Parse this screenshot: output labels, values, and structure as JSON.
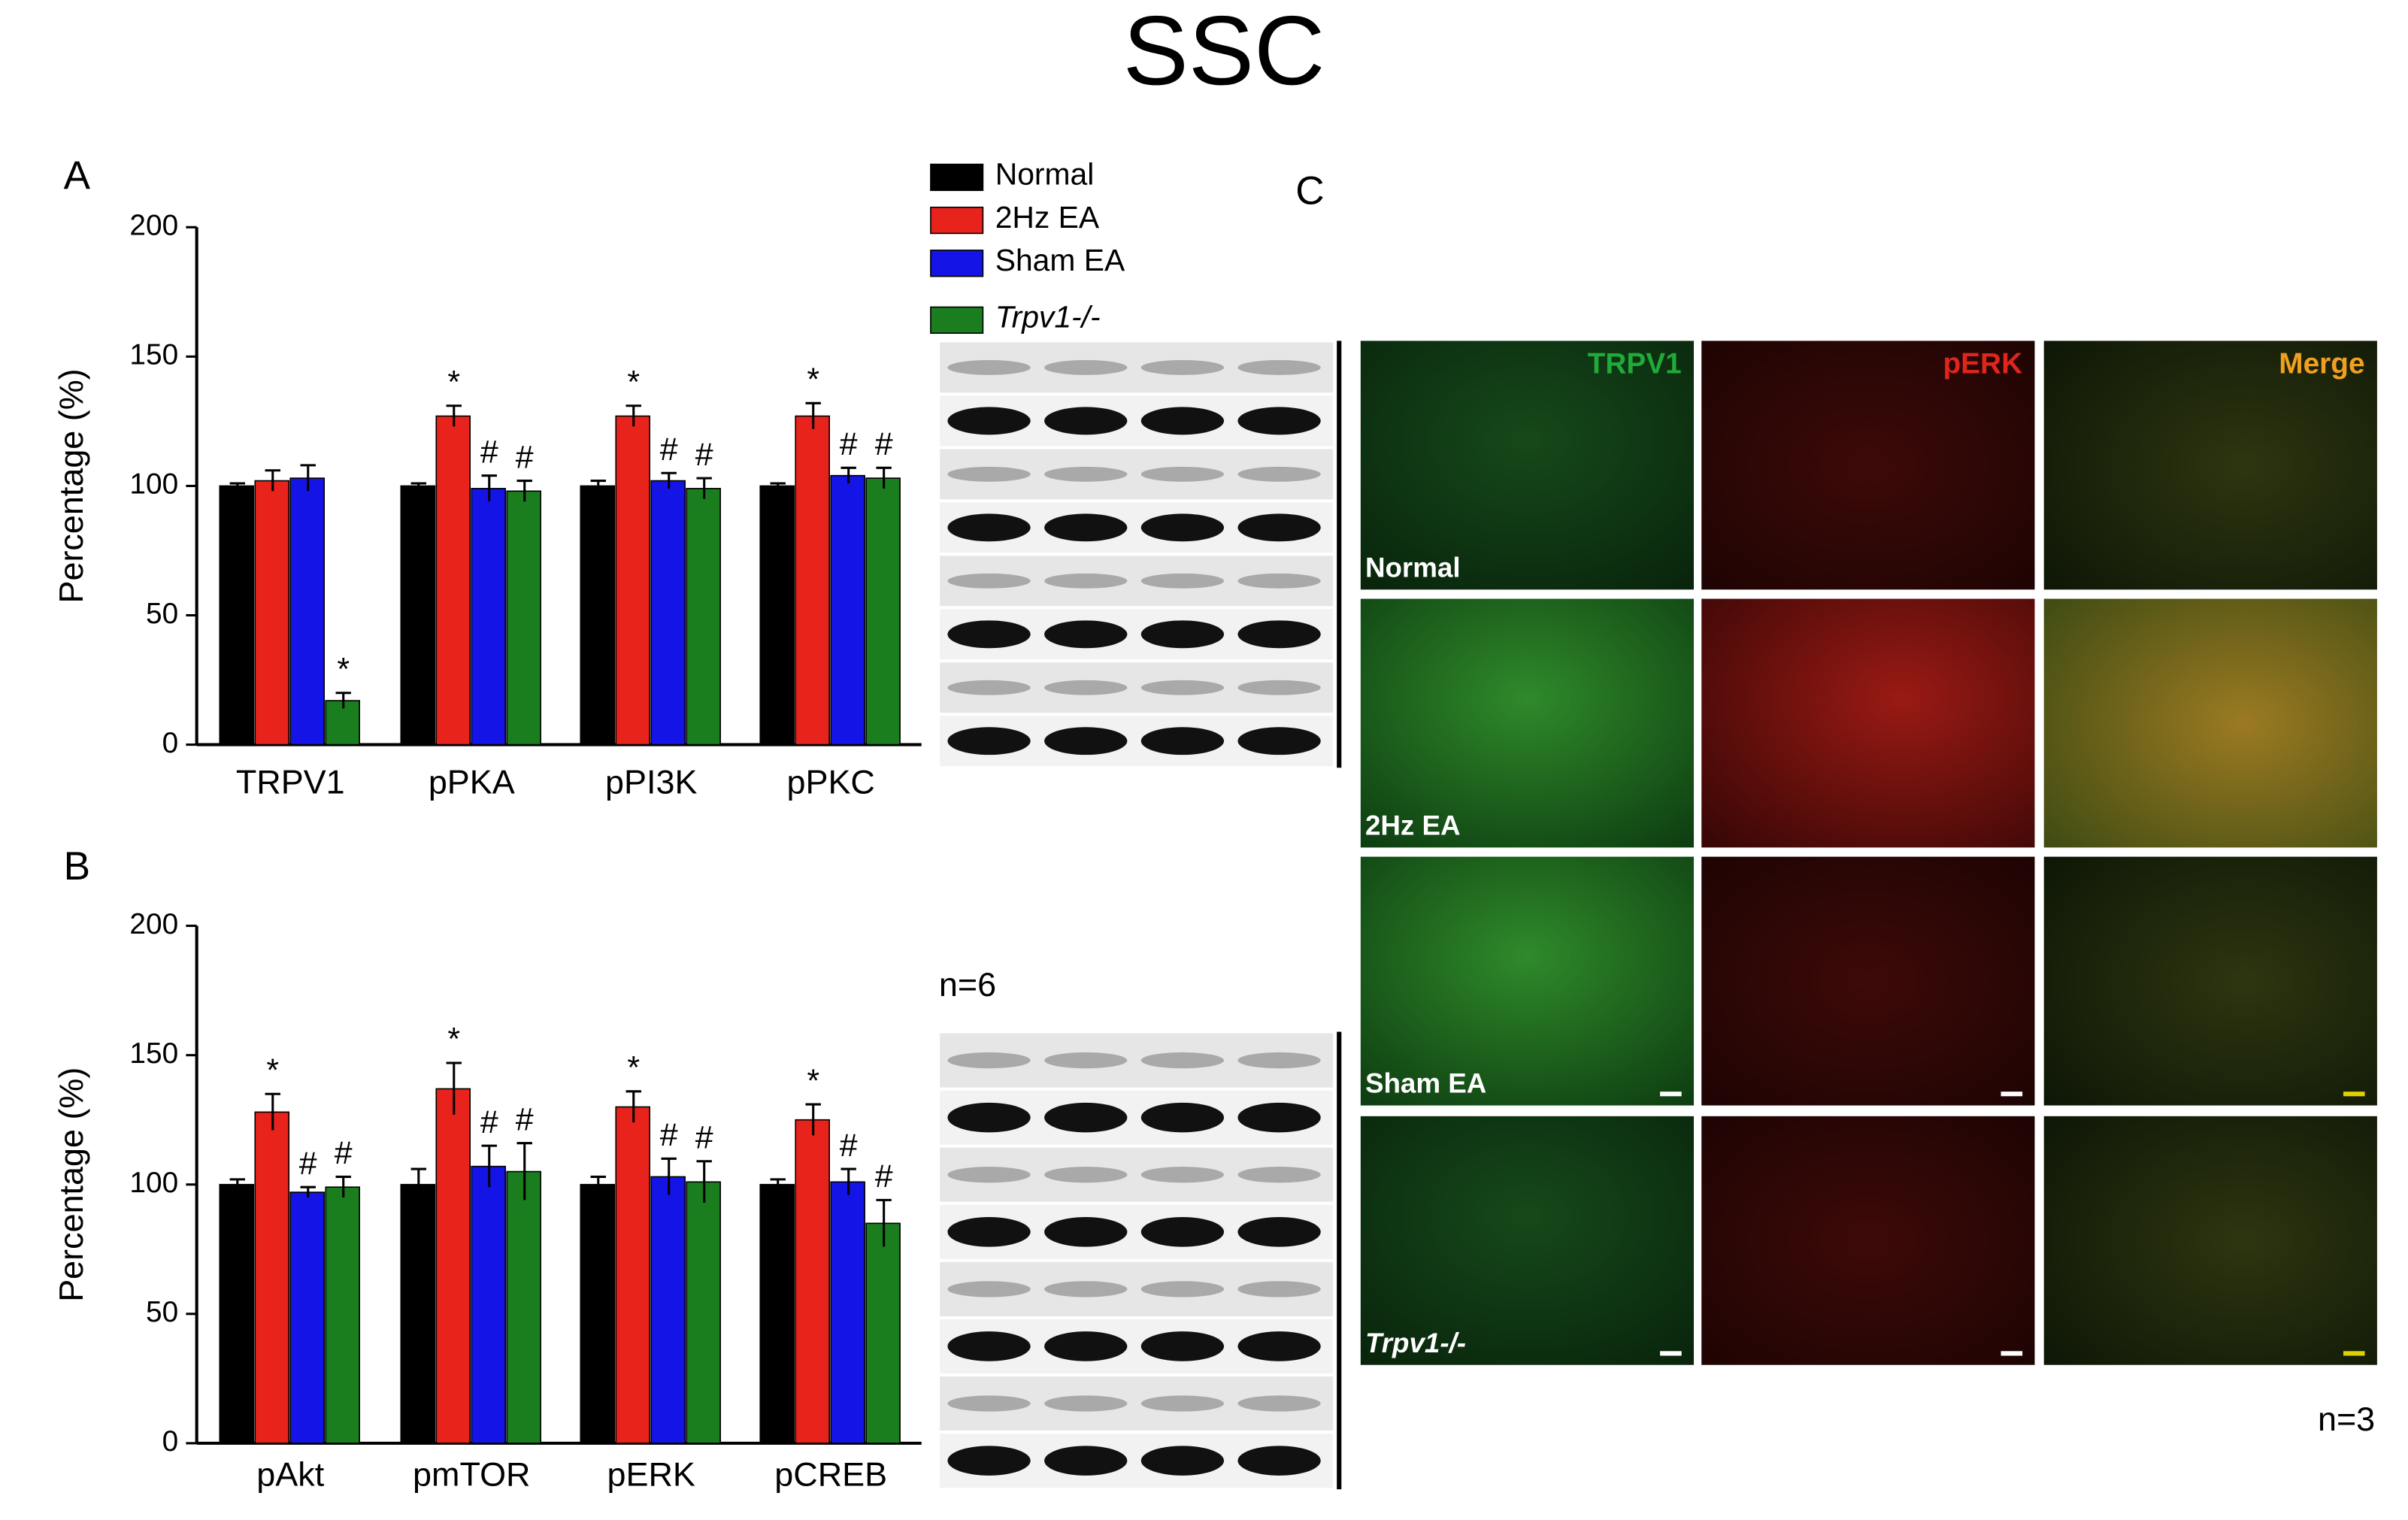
{
  "title": "SSC",
  "panel_labels": [
    "A",
    "B",
    "C"
  ],
  "blot_note": "n=6",
  "image_note": "n=3",
  "micrographs": {
    "columns": [
      "TRPV1",
      "pERK",
      "Merge"
    ],
    "rows": [
      "Normal",
      "2Hz EA",
      "Sham EA",
      "Trpv1-/-"
    ]
  },
  "chart_data": [
    {
      "type": "bar",
      "ylabel": "Percentage (%)",
      "categories": [
        "TRPV1",
        "pPKA",
        "pPI3K",
        "pPKC"
      ],
      "ylim": [
        0,
        200
      ],
      "yticks": [
        0,
        50,
        100,
        150,
        200
      ],
      "legend": "top-right",
      "series": [
        {
          "name": "Normal",
          "color": "#000000",
          "values": [
            100,
            100,
            100,
            100
          ],
          "errors": [
            1,
            1,
            2,
            1
          ]
        },
        {
          "name": "2Hz EA",
          "color": "#e8231c",
          "values": [
            102,
            127,
            127,
            127
          ],
          "errors": [
            4,
            4,
            4,
            5
          ],
          "markers": [
            null,
            "*",
            "*",
            "*"
          ]
        },
        {
          "name": "Sham EA",
          "color": "#1414e6",
          "values": [
            103,
            99,
            102,
            104
          ],
          "errors": [
            5,
            5,
            3,
            3
          ],
          "markers": [
            null,
            "#",
            "#",
            "#"
          ]
        },
        {
          "name": "Trpv1-/-",
          "color": "#1a7d1e",
          "values": [
            17,
            98,
            99,
            103
          ],
          "errors": [
            3,
            4,
            4,
            4
          ],
          "markers": [
            "*",
            "#",
            "#",
            "#"
          ]
        }
      ]
    },
    {
      "type": "bar",
      "ylabel": "Percentage (%)",
      "categories": [
        "pAkt",
        "pmTOR",
        "pERK",
        "pCREB"
      ],
      "ylim": [
        0,
        200
      ],
      "yticks": [
        0,
        50,
        100,
        150,
        200
      ],
      "series": [
        {
          "name": "Normal",
          "color": "#000000",
          "values": [
            100,
            100,
            100,
            100
          ],
          "errors": [
            2,
            6,
            3,
            2
          ]
        },
        {
          "name": "2Hz EA",
          "color": "#e8231c",
          "values": [
            128,
            137,
            130,
            125
          ],
          "errors": [
            7,
            10,
            6,
            6
          ],
          "markers": [
            "*",
            "*",
            "*",
            "*"
          ]
        },
        {
          "name": "Sham EA",
          "color": "#1414e6",
          "values": [
            97,
            107,
            103,
            101
          ],
          "errors": [
            2,
            8,
            7,
            5
          ],
          "markers": [
            "#",
            "#",
            "#",
            "#"
          ]
        },
        {
          "name": "Trpv1-/-",
          "color": "#1a7d1e",
          "values": [
            99,
            105,
            101,
            85
          ],
          "errors": [
            4,
            11,
            8,
            9
          ],
          "markers": [
            "#",
            "#",
            "#",
            "#"
          ]
        }
      ]
    }
  ]
}
